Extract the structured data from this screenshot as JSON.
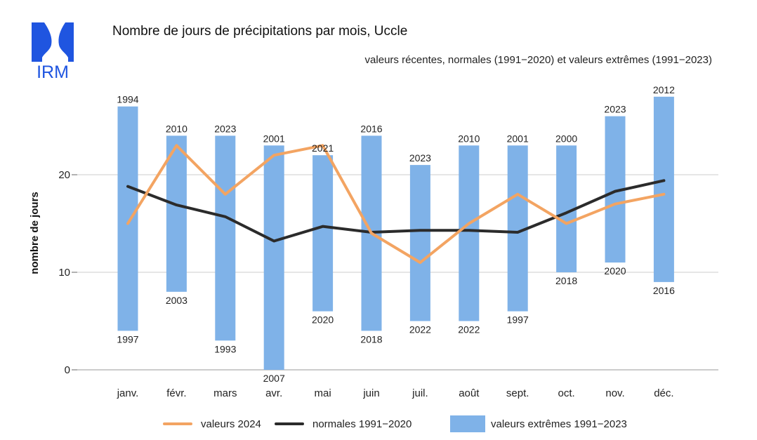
{
  "header": {
    "title": "Nombre de jours de précipitations par mois, Uccle",
    "subtitle": "valeurs récentes, normales (1991−2020) et valeurs extrêmes (1991−2023)",
    "logo_text": "IRM"
  },
  "colors": {
    "recent": "#f3a462",
    "normal": "#2b2b2b",
    "extreme": "#7fb2e8",
    "logo": "#1f55e0",
    "grid": "#cccccc"
  },
  "legend": {
    "recent": "valeurs 2024",
    "normal": "normales 1991−2020",
    "extreme": "valeurs extrêmes 1991−2023"
  },
  "chart_data": {
    "type": "bar",
    "categories": [
      "janv.",
      "févr.",
      "mars",
      "avr.",
      "mai",
      "juin",
      "juil.",
      "août",
      "sept.",
      "oct.",
      "nov.",
      "déc."
    ],
    "ylabel": "nombre de jours",
    "ylim": [
      0,
      30
    ],
    "yticks": [
      0,
      10,
      20
    ],
    "grid": true,
    "legend_position": "bottom",
    "series": [
      {
        "name": "valeurs extrêmes 1991−2023",
        "type": "floating-bar",
        "min": [
          4,
          8,
          3,
          0,
          6,
          4,
          5,
          5,
          6,
          10,
          11,
          9
        ],
        "max": [
          27,
          24,
          24,
          23,
          22,
          24,
          21,
          23,
          23,
          23,
          26,
          28
        ],
        "min_years": [
          "1997",
          "2003",
          "1993",
          "2007",
          "2020",
          "2018",
          "2022",
          "2022",
          "1997",
          "2018",
          "2020",
          "2016"
        ],
        "max_years": [
          "1994",
          "2010",
          "2023",
          "2001",
          "2021",
          "2016",
          "2023",
          "2010",
          "2001",
          "2000",
          "2023",
          "2012"
        ]
      },
      {
        "name": "valeurs 2024",
        "type": "line",
        "values": [
          15,
          23,
          18,
          22,
          23,
          14,
          11,
          15,
          18,
          15,
          17,
          18
        ]
      },
      {
        "name": "normales 1991−2020",
        "type": "line",
        "values": [
          18.8,
          16.9,
          15.7,
          13.2,
          14.7,
          14.1,
          14.3,
          14.3,
          14.1,
          16.1,
          18.3,
          19.4
        ]
      }
    ]
  }
}
